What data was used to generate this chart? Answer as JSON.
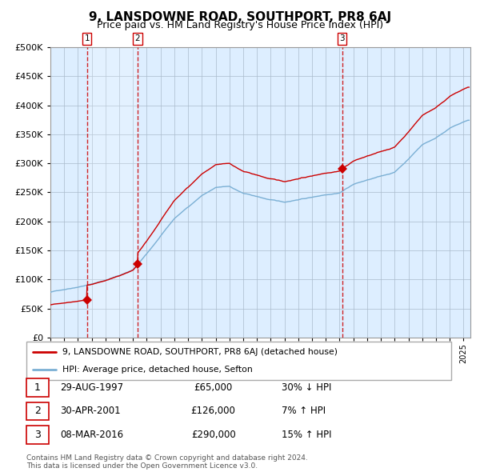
{
  "title": "9, LANSDOWNE ROAD, SOUTHPORT, PR8 6AJ",
  "subtitle": "Price paid vs. HM Land Registry's House Price Index (HPI)",
  "ylim": [
    0,
    500000
  ],
  "yticks": [
    0,
    50000,
    100000,
    150000,
    200000,
    250000,
    300000,
    350000,
    400000,
    450000,
    500000
  ],
  "sale_dates": [
    1997.66,
    2001.33,
    2016.18
  ],
  "sale_prices": [
    65000,
    126000,
    290000
  ],
  "sale_labels": [
    "1",
    "2",
    "3"
  ],
  "legend_entries": [
    "9, LANSDOWNE ROAD, SOUTHPORT, PR8 6AJ (detached house)",
    "HPI: Average price, detached house, Sefton"
  ],
  "table_data": [
    [
      "1",
      "29-AUG-1997",
      "£65,000",
      "30% ↓ HPI"
    ],
    [
      "2",
      "30-APR-2001",
      "£126,000",
      "7% ↑ HPI"
    ],
    [
      "3",
      "08-MAR-2016",
      "£290,000",
      "15% ↑ HPI"
    ]
  ],
  "footnote": "Contains HM Land Registry data © Crown copyright and database right 2024.\nThis data is licensed under the Open Government Licence v3.0.",
  "line_color_red": "#cc0000",
  "line_color_blue": "#7aafd4",
  "bg_color": "#ddeeff",
  "grid_color": "#aabbcc",
  "vline_color": "#cc0000",
  "marker_color": "#cc0000",
  "xmin": 1995.0,
  "xmax": 2025.5,
  "hpi_key_years": [
    1995,
    1996,
    1997,
    1998,
    1999,
    2000,
    2001,
    2002,
    2003,
    2004,
    2005,
    2006,
    2007,
    2008,
    2009,
    2010,
    2011,
    2012,
    2013,
    2014,
    2015,
    2016,
    2017,
    2018,
    2019,
    2020,
    2021,
    2022,
    2023,
    2024,
    2025.3
  ],
  "hpi_key_vals": [
    78000,
    83000,
    88000,
    93000,
    100000,
    108000,
    118000,
    145000,
    175000,
    205000,
    225000,
    245000,
    258000,
    260000,
    248000,
    242000,
    236000,
    232000,
    237000,
    241000,
    246000,
    250000,
    265000,
    272000,
    278000,
    285000,
    308000,
    333000,
    345000,
    362000,
    375000
  ]
}
